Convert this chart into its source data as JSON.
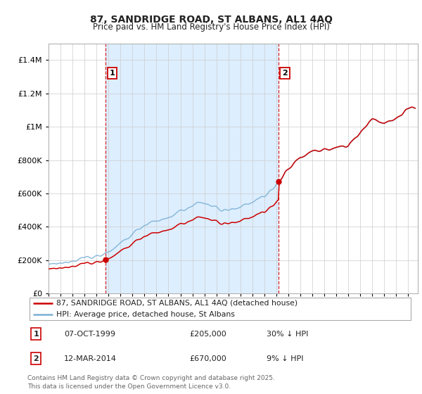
{
  "title_line1": "87, SANDRIDGE ROAD, ST ALBANS, AL1 4AQ",
  "title_line2": "Price paid vs. HM Land Registry's House Price Index (HPI)",
  "ylim": [
    0,
    1500000
  ],
  "yticks": [
    0,
    200000,
    400000,
    600000,
    800000,
    1000000,
    1200000,
    1400000
  ],
  "sale1_date": 1999.77,
  "sale1_price": 205000,
  "sale2_date": 2014.19,
  "sale2_price": 670000,
  "sale_color": "#cc0000",
  "hpi_color": "#7ab0d4",
  "shade_color": "#ddeeff",
  "annotation1_text": "1",
  "annotation2_text": "2",
  "legend_sale_label": "87, SANDRIDGE ROAD, ST ALBANS, AL1 4AQ (detached house)",
  "legend_hpi_label": "HPI: Average price, detached house, St Albans",
  "table_row1": [
    "1",
    "07-OCT-1999",
    "£205,000",
    "30% ↓ HPI"
  ],
  "table_row2": [
    "2",
    "12-MAR-2014",
    "£670,000",
    "9% ↓ HPI"
  ],
  "footer": "Contains HM Land Registry data © Crown copyright and database right 2025.\nThis data is licensed under the Open Government Licence v3.0.",
  "background_color": "#ffffff",
  "grid_color": "#cccccc",
  "xlim_start": 1995.0,
  "xlim_end": 2025.8
}
